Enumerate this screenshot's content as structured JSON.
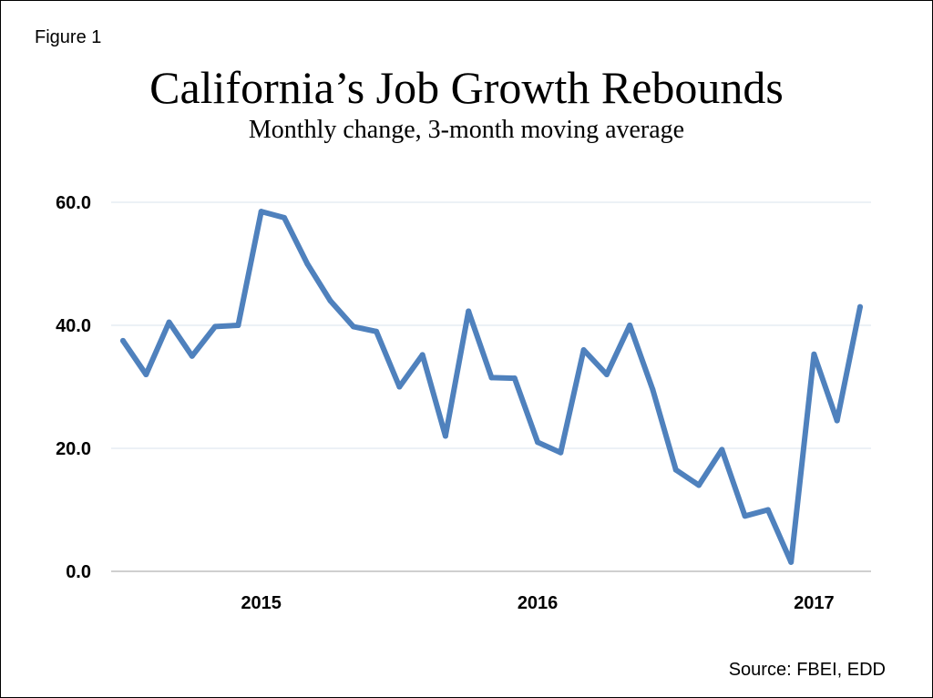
{
  "figure_label": "Figure 1",
  "source": "Source: FBEI, EDD",
  "colors": {
    "line": "#4f81bd",
    "gridline": "#d9e3ec",
    "axis": "#bfbfbf"
  },
  "chart_data": {
    "type": "line",
    "title": "California’s Job Growth Rebounds",
    "subtitle": "Monthly change, 3-month moving average",
    "xlabel": "",
    "ylabel": "",
    "ylim": [
      0,
      60
    ],
    "y_ticks": [
      {
        "value": 0,
        "label": "0.0"
      },
      {
        "value": 20,
        "label": "20.0"
      },
      {
        "value": 40,
        "label": "40.0"
      },
      {
        "value": 60,
        "label": "60.0"
      }
    ],
    "x_ticks": [
      {
        "index": 6,
        "label": "2015"
      },
      {
        "index": 18,
        "label": "2016"
      },
      {
        "index": 30,
        "label": "2017"
      }
    ],
    "grid": true,
    "legend": "none",
    "series": [
      {
        "values": [
          37.5,
          32.0,
          40.5,
          35.0,
          39.8,
          40.0,
          58.5,
          57.5,
          50.0,
          44.0,
          39.8,
          39.0,
          30.0,
          35.2,
          22.0,
          42.3,
          31.5,
          31.4,
          21.0,
          19.3,
          36.0,
          32.0,
          40.0,
          29.5,
          16.5,
          14.0,
          19.8,
          9.0,
          10.0,
          1.5,
          35.3,
          24.5,
          43.0
        ]
      }
    ]
  }
}
